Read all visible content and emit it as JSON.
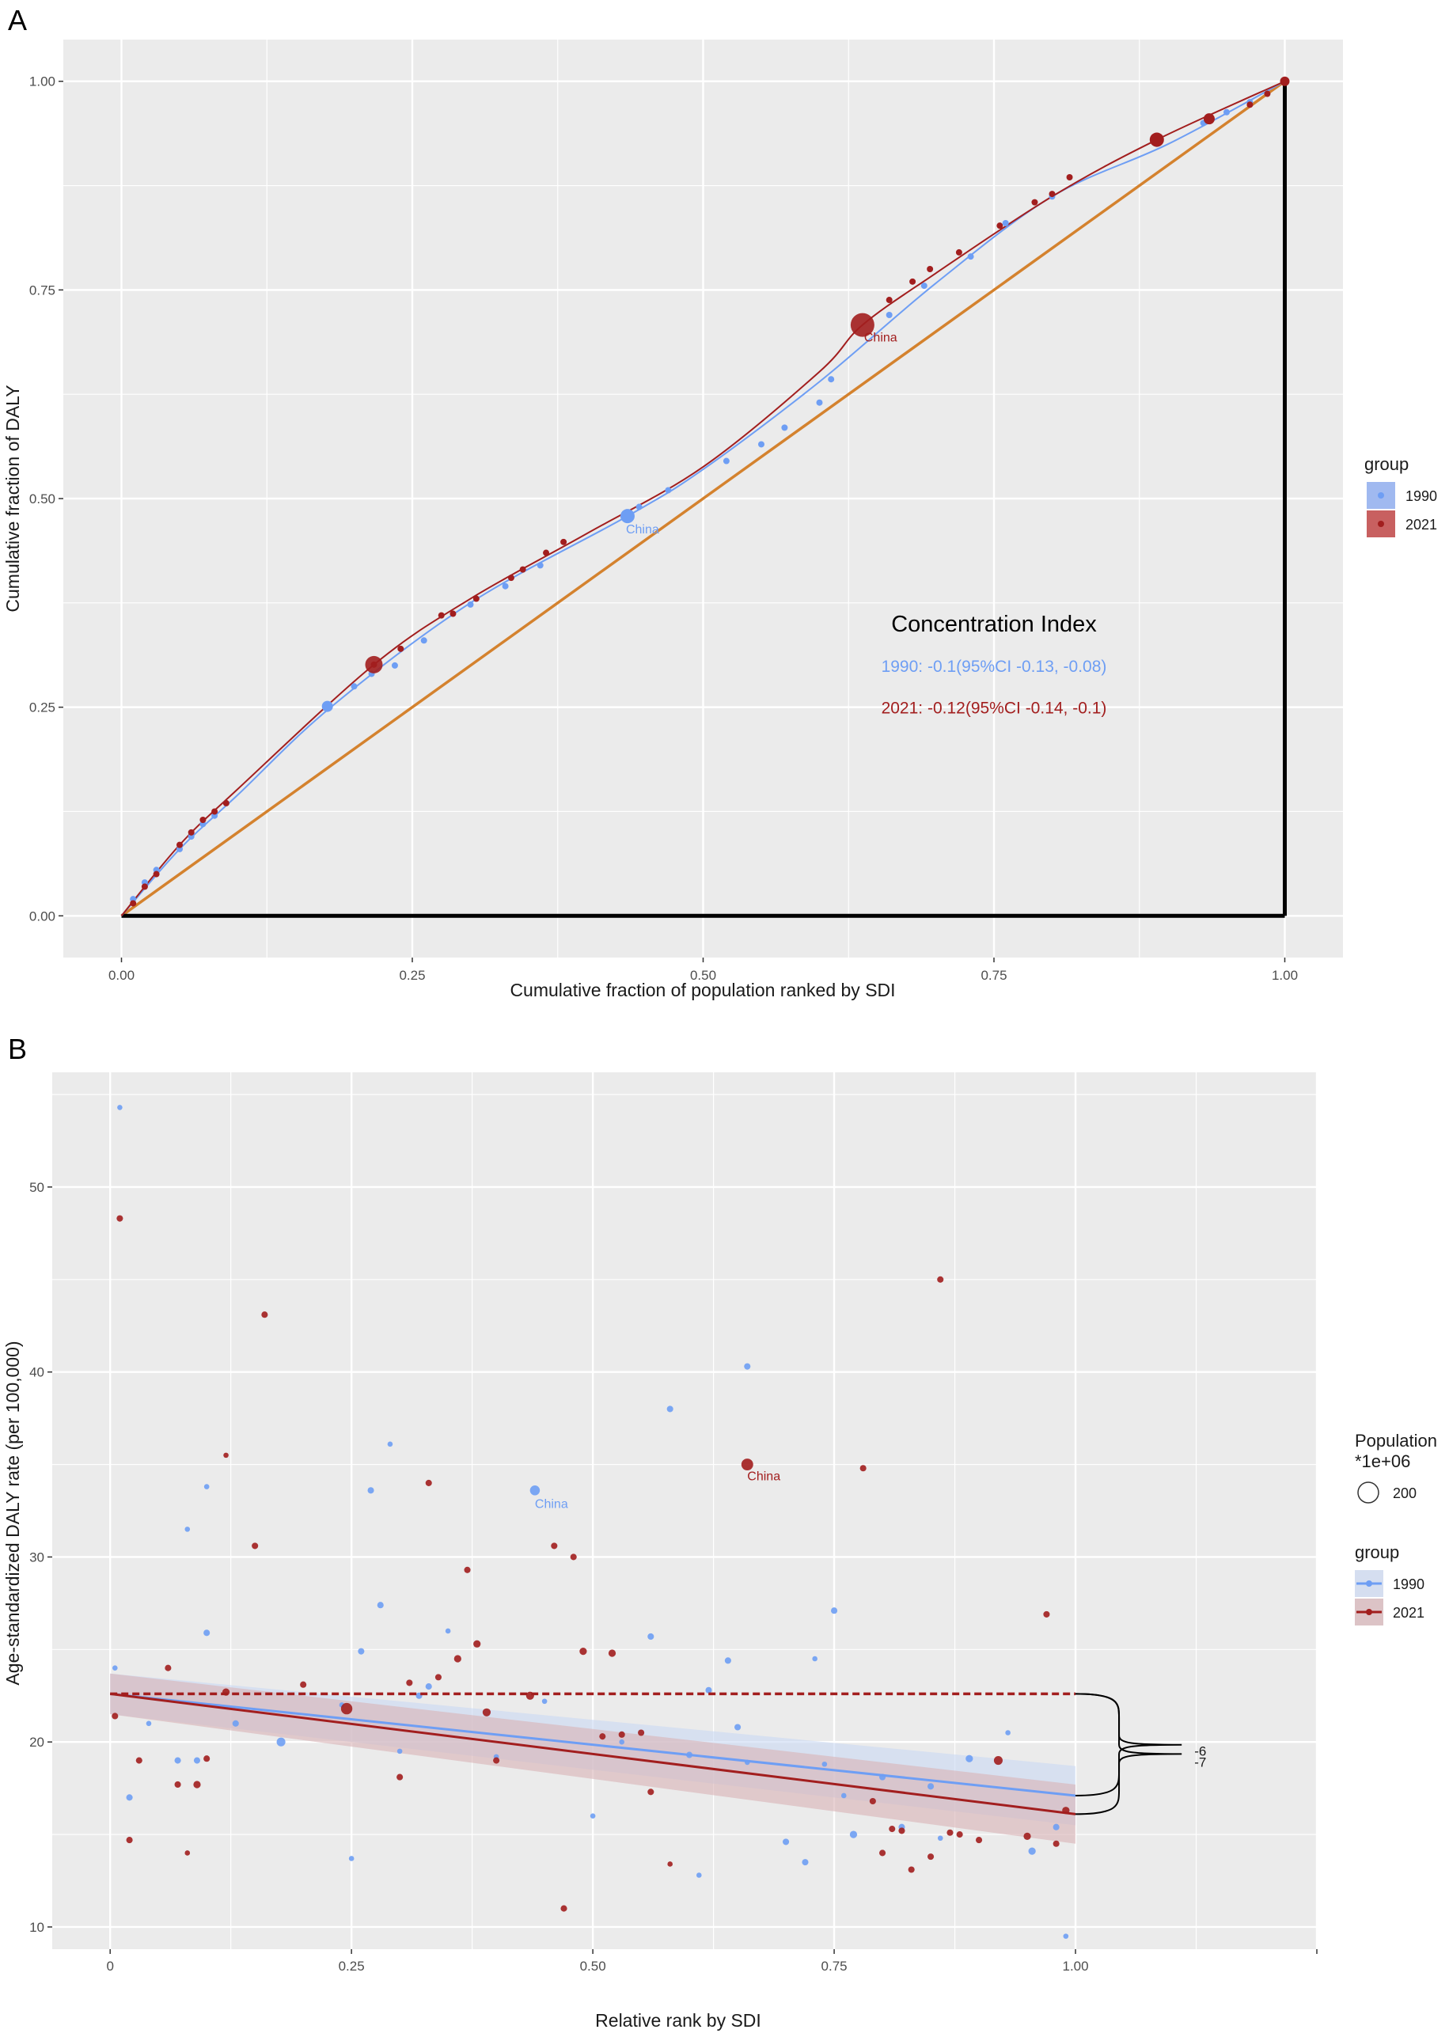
{
  "colors": {
    "c1990": "#6e9ef4",
    "c2021": "#a21e1e",
    "diag": "#d4822e",
    "panel": "#ebebeb",
    "grid": "#ffffff",
    "text": "#333333",
    "tick": "#4d4d4d",
    "fill1990": "#c9d8f4",
    "fill2021": "#d9b2b6"
  },
  "chart_data": [
    {
      "type": "line",
      "panel_label": "A",
      "xlabel": "Cumulative fraction of population ranked by SDI",
      "ylabel": "Cumulative fraction of DALY",
      "xlim": [
        -0.05,
        1.05
      ],
      "ylim": [
        -0.05,
        1.05
      ],
      "xticks": [
        0,
        0.25,
        0.5,
        0.75,
        1
      ],
      "xtick_labels": [
        "0.00",
        "0.25",
        "0.50",
        "0.75",
        "1.00"
      ],
      "yticks": [
        0,
        0.25,
        0.5,
        0.75,
        1
      ],
      "ytick_labels": [
        "0.00",
        "0.25",
        "0.50",
        "0.75",
        "1.00"
      ],
      "annotation": {
        "title": "Concentration Index",
        "line1990": "1990: -0.1(95%CI -0.13, -0.08)",
        "line2021": "2021: -0.12(95%CI -0.14, -0.1)",
        "x": 0.75,
        "y_title": 0.35,
        "y1990": 0.3,
        "y2021": 0.25
      },
      "label_china_1990": "China",
      "label_china_2021": "China",
      "china_1990": [
        0.435,
        0.479
      ],
      "china_2021": [
        0.637,
        0.708
      ],
      "series": [
        {
          "name": "1990",
          "curve": [
            [
              0,
              0
            ],
            [
              0.05,
              0.08
            ],
            [
              0.1,
              0.145
            ],
            [
              0.18,
              0.25
            ],
            [
              0.3,
              0.375
            ],
            [
              0.435,
              0.479
            ],
            [
              0.5,
              0.535
            ],
            [
              0.6,
              0.64
            ],
            [
              0.7,
              0.758
            ],
            [
              0.8,
              0.862
            ],
            [
              0.9,
              0.925
            ],
            [
              1,
              1
            ]
          ],
          "points": [
            [
              0.01,
              0.02
            ],
            [
              0.02,
              0.04
            ],
            [
              0.03,
              0.055
            ],
            [
              0.05,
              0.08
            ],
            [
              0.06,
              0.095
            ],
            [
              0.07,
              0.11
            ],
            [
              0.08,
              0.12
            ],
            [
              0.09,
              0.135
            ],
            [
              0.177,
              0.251
            ],
            [
              0.2,
              0.275
            ],
            [
              0.215,
              0.29
            ],
            [
              0.235,
              0.3
            ],
            [
              0.26,
              0.33
            ],
            [
              0.3,
              0.373
            ],
            [
              0.33,
              0.395
            ],
            [
              0.36,
              0.42
            ],
            [
              0.445,
              0.49
            ],
            [
              0.47,
              0.51
            ],
            [
              0.52,
              0.545
            ],
            [
              0.55,
              0.565
            ],
            [
              0.57,
              0.585
            ],
            [
              0.6,
              0.615
            ],
            [
              0.61,
              0.643
            ],
            [
              0.66,
              0.72
            ],
            [
              0.69,
              0.755
            ],
            [
              0.73,
              0.79
            ],
            [
              0.76,
              0.83
            ],
            [
              0.8,
              0.862
            ],
            [
              0.89,
              0.925
            ],
            [
              0.93,
              0.95
            ],
            [
              0.95,
              0.963
            ],
            [
              0.97,
              0.975
            ]
          ]
        },
        {
          "name": "2021",
          "curve": [
            [
              0,
              0
            ],
            [
              0.05,
              0.085
            ],
            [
              0.1,
              0.152
            ],
            [
              0.217,
              0.301
            ],
            [
              0.3,
              0.38
            ],
            [
              0.4,
              0.458
            ],
            [
              0.5,
              0.538
            ],
            [
              0.6,
              0.652
            ],
            [
              0.637,
              0.708
            ],
            [
              0.7,
              0.77
            ],
            [
              0.8,
              0.862
            ],
            [
              0.89,
              0.93
            ],
            [
              1,
              1
            ]
          ],
          "points": [
            [
              0.01,
              0.015
            ],
            [
              0.02,
              0.035
            ],
            [
              0.03,
              0.05
            ],
            [
              0.05,
              0.085
            ],
            [
              0.06,
              0.1
            ],
            [
              0.07,
              0.115
            ],
            [
              0.08,
              0.125
            ],
            [
              0.09,
              0.135
            ],
            [
              0.217,
              0.301
            ],
            [
              0.24,
              0.32
            ],
            [
              0.275,
              0.36
            ],
            [
              0.285,
              0.362
            ],
            [
              0.305,
              0.38
            ],
            [
              0.335,
              0.405
            ],
            [
              0.345,
              0.415
            ],
            [
              0.365,
              0.435
            ],
            [
              0.38,
              0.448
            ],
            [
              0.66,
              0.738
            ],
            [
              0.68,
              0.76
            ],
            [
              0.695,
              0.775
            ],
            [
              0.72,
              0.795
            ],
            [
              0.755,
              0.827
            ],
            [
              0.785,
              0.855
            ],
            [
              0.8,
              0.865
            ],
            [
              0.815,
              0.885
            ],
            [
              0.89,
              0.93
            ],
            [
              0.935,
              0.955
            ],
            [
              0.97,
              0.972
            ],
            [
              0.985,
              0.985
            ]
          ]
        }
      ],
      "equality_line": [
        [
          0,
          0
        ],
        [
          1,
          1
        ]
      ],
      "legend": {
        "title": "group",
        "entries": [
          "1990",
          "2021"
        ]
      }
    },
    {
      "type": "scatter",
      "panel_label": "B",
      "xlabel": "Relative rank by SDI",
      "ylabel": "Age-standardized DALY rate (per 100,000)",
      "xlim": [
        -0.06,
        1.25
      ],
      "ylim": [
        8.8,
        56.2
      ],
      "xticks": [
        0,
        0.25,
        0.5,
        0.75,
        1
      ],
      "xtick_labels": [
        "0",
        "0.25",
        "0.50",
        "0.75",
        "1.00"
      ],
      "yticks": [
        10,
        20,
        30,
        40,
        50
      ],
      "ytick_labels": [
        "10",
        "20",
        "30",
        "40",
        "50"
      ],
      "label_china_1990": "China",
      "label_china_2021": "China",
      "china_1990": [
        0.44,
        33.6
      ],
      "china_2021": [
        0.66,
        35.0
      ],
      "regression": [
        {
          "name": "1990",
          "start": [
            0,
            22.6
          ],
          "end": [
            1,
            17.1
          ],
          "ci": [
            1.1,
            1.6
          ]
        },
        {
          "name": "2021",
          "start": [
            0,
            22.6
          ],
          "end": [
            1,
            16.1
          ],
          "ci": [
            1.1,
            1.6
          ]
        }
      ],
      "reference_level": 22.6,
      "brace_labels": [
        "-6",
        "-7"
      ],
      "legend_population": {
        "title_line1": "Population",
        "title_line2": "*1e+06",
        "entry": "200"
      },
      "legend_group": {
        "title": "group",
        "entries": [
          "1990",
          "2021"
        ]
      },
      "series": [
        {
          "name": "1990",
          "points": [
            [
              0.01,
              54.3,
              1
            ],
            [
              0.005,
              24,
              1
            ],
            [
              0.02,
              17,
              2
            ],
            [
              0.04,
              21,
              1
            ],
            [
              0.07,
              19,
              2
            ],
            [
              0.08,
              31.5,
              1
            ],
            [
              0.09,
              19,
              2
            ],
            [
              0.1,
              25.9,
              2
            ],
            [
              0.1,
              33.8,
              1
            ],
            [
              0.13,
              21,
              2
            ],
            [
              0.177,
              20,
              5
            ],
            [
              0.24,
              22,
              1
            ],
            [
              0.25,
              13.7,
              1
            ],
            [
              0.26,
              24.9,
              2
            ],
            [
              0.27,
              33.6,
              2
            ],
            [
              0.28,
              27.4,
              2
            ],
            [
              0.29,
              36.1,
              1
            ],
            [
              0.3,
              19.5,
              1
            ],
            [
              0.32,
              22.5,
              2
            ],
            [
              0.33,
              23,
              2
            ],
            [
              0.35,
              26,
              1
            ],
            [
              0.4,
              19.2,
              1
            ],
            [
              0.44,
              33.6,
              7
            ],
            [
              0.45,
              22.2,
              1
            ],
            [
              0.5,
              16,
              1
            ],
            [
              0.53,
              20,
              1
            ],
            [
              0.56,
              25.7,
              2
            ],
            [
              0.58,
              38,
              2
            ],
            [
              0.6,
              19.3,
              2
            ],
            [
              0.61,
              12.8,
              1
            ],
            [
              0.62,
              22.8,
              2
            ],
            [
              0.64,
              24.4,
              2
            ],
            [
              0.65,
              20.8,
              2
            ],
            [
              0.66,
              40.3,
              2
            ],
            [
              0.66,
              18.9,
              1
            ],
            [
              0.7,
              14.6,
              2
            ],
            [
              0.72,
              13.5,
              2
            ],
            [
              0.73,
              24.5,
              1
            ],
            [
              0.74,
              18.8,
              1
            ],
            [
              0.75,
              27.1,
              2
            ],
            [
              0.76,
              17.1,
              1
            ],
            [
              0.77,
              15,
              3
            ],
            [
              0.8,
              18.1,
              2
            ],
            [
              0.82,
              15.4,
              2
            ],
            [
              0.85,
              17.6,
              2
            ],
            [
              0.86,
              14.8,
              1
            ],
            [
              0.89,
              19.1,
              3
            ],
            [
              0.93,
              20.5,
              1
            ],
            [
              0.955,
              14.1,
              3
            ],
            [
              0.98,
              15.4,
              2
            ],
            [
              0.99,
              9.5,
              1
            ]
          ]
        },
        {
          "name": "2021",
          "points": [
            [
              0.01,
              48.3,
              2
            ],
            [
              0.005,
              21.4,
              2
            ],
            [
              0.02,
              14.7,
              2
            ],
            [
              0.03,
              19,
              2
            ],
            [
              0.06,
              24,
              2
            ],
            [
              0.07,
              17.7,
              2
            ],
            [
              0.08,
              14,
              1
            ],
            [
              0.09,
              17.7,
              3
            ],
            [
              0.1,
              19.1,
              2
            ],
            [
              0.12,
              22.7,
              3
            ],
            [
              0.12,
              35.5,
              1
            ],
            [
              0.15,
              30.6,
              2
            ],
            [
              0.16,
              43.1,
              2
            ],
            [
              0.2,
              23.1,
              2
            ],
            [
              0.245,
              21.8,
              10
            ],
            [
              0.3,
              18.1,
              2
            ],
            [
              0.31,
              23.2,
              2
            ],
            [
              0.33,
              34,
              2
            ],
            [
              0.34,
              23.5,
              2
            ],
            [
              0.36,
              24.5,
              3
            ],
            [
              0.37,
              29.3,
              2
            ],
            [
              0.38,
              25.3,
              3
            ],
            [
              0.39,
              21.6,
              4
            ],
            [
              0.4,
              19,
              2
            ],
            [
              0.435,
              22.5,
              4
            ],
            [
              0.46,
              30.6,
              2
            ],
            [
              0.47,
              11,
              2
            ],
            [
              0.48,
              30,
              2
            ],
            [
              0.49,
              24.9,
              3
            ],
            [
              0.51,
              20.3,
              2
            ],
            [
              0.52,
              24.8,
              3
            ],
            [
              0.53,
              20.4,
              2
            ],
            [
              0.55,
              20.5,
              2
            ],
            [
              0.56,
              17.3,
              2
            ],
            [
              0.58,
              13.4,
              1
            ],
            [
              0.66,
              35,
              11
            ],
            [
              0.78,
              34.8,
              2
            ],
            [
              0.79,
              16.8,
              2
            ],
            [
              0.8,
              14,
              2
            ],
            [
              0.81,
              15.3,
              2
            ],
            [
              0.82,
              15.2,
              2
            ],
            [
              0.83,
              13.1,
              2
            ],
            [
              0.85,
              13.8,
              2
            ],
            [
              0.86,
              45,
              2
            ],
            [
              0.87,
              15.1,
              2
            ],
            [
              0.88,
              15,
              2
            ],
            [
              0.9,
              14.7,
              2
            ],
            [
              0.92,
              19,
              5
            ],
            [
              0.95,
              14.9,
              3
            ],
            [
              0.97,
              26.9,
              2
            ],
            [
              0.98,
              14.5,
              2
            ],
            [
              0.99,
              16.3,
              3
            ]
          ]
        }
      ]
    }
  ]
}
